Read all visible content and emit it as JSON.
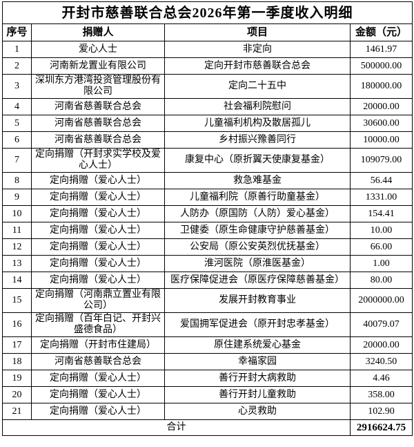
{
  "title": "开封市慈善联合总会2026年第一季度收入明细",
  "columns": {
    "no": "序号",
    "donor": "捐赠人",
    "project": "项目",
    "amount": "金额（元）"
  },
  "rows": [
    {
      "no": "1",
      "donor": "爱心人士",
      "project": "非定向",
      "amount": "1461.97"
    },
    {
      "no": "2",
      "donor": "河南新龙置业有限公司",
      "project": "定向开封市慈善联合总会",
      "amount": "500000.00"
    },
    {
      "no": "3",
      "donor": "深圳东方港湾投资管理股份有限公司",
      "project": "定向二十五中",
      "amount": "180000.00"
    },
    {
      "no": "4",
      "donor": "河南省慈善联合总会",
      "project": "社会福利院慰问",
      "amount": "20000.00"
    },
    {
      "no": "5",
      "donor": "河南省慈善联合总会",
      "project": "儿童福利机构及散居孤儿",
      "amount": "30600.00"
    },
    {
      "no": "6",
      "donor": "河南省慈善联合总会",
      "project": "乡村振兴豫善同行",
      "amount": "10000.00"
    },
    {
      "no": "7",
      "donor": "定向捐赠（开封求实学校及爱心人士）",
      "project": "康复中心（原折翼天使康复基金）",
      "amount": "109079.00"
    },
    {
      "no": "8",
      "donor": "定向捐赠（爱心人士）",
      "project": "救急难基金",
      "amount": "56.44"
    },
    {
      "no": "9",
      "donor": "定向捐赠（爱心人士）",
      "project": "儿童福利院（原善行助童基金）",
      "amount": "1331.00"
    },
    {
      "no": "10",
      "donor": "定向捐赠（爱心人士）",
      "project": "人防办（原国防（人防）爱心基金）",
      "amount": "154.41"
    },
    {
      "no": "11",
      "donor": "定向捐赠（爱心人士）",
      "project": "卫健委（原生命健康守护慈善基金）",
      "amount": "10.00"
    },
    {
      "no": "12",
      "donor": "定向捐赠（爱心人士）",
      "project": "公安局（原公安英烈优抚基金）",
      "amount": "66.00"
    },
    {
      "no": "13",
      "donor": "定向捐赠（爱心人士）",
      "project": "淮河医院（原淮医基金）",
      "amount": "1.00"
    },
    {
      "no": "14",
      "donor": "定向捐赠（爱心人士）",
      "project": "医疗保障促进会（原医疗保障慈善基金）",
      "amount": "80.00"
    },
    {
      "no": "15",
      "donor": "定向捐赠（河南鼎立置业有限公司）",
      "project": "发展开封教育事业",
      "amount": "2000000.00"
    },
    {
      "no": "16",
      "donor": "定向捐赠（百年白记、开封兴盛德食品）",
      "project": "爱国拥军促进会（原开封忠孝基金）",
      "amount": "40079.07"
    },
    {
      "no": "17",
      "donor": "定向捐赠（开封市住建局）",
      "project": "原住建系统爱心基金",
      "amount": "20000.00"
    },
    {
      "no": "18",
      "donor": "河南省慈善联合总会",
      "project": "幸福家园",
      "amount": "3240.50"
    },
    {
      "no": "19",
      "donor": "定向捐赠（爱心人士）",
      "project": "善行开封大病救助",
      "amount": "4.46"
    },
    {
      "no": "20",
      "donor": "定向捐赠（爱心人士）",
      "project": "善行开封儿童救助",
      "amount": "358.00"
    },
    {
      "no": "21",
      "donor": "定向捐赠（爱心人士）",
      "project": "心灵救助",
      "amount": "102.90"
    }
  ],
  "total": {
    "label": "合计",
    "amount": "2916624.75"
  }
}
